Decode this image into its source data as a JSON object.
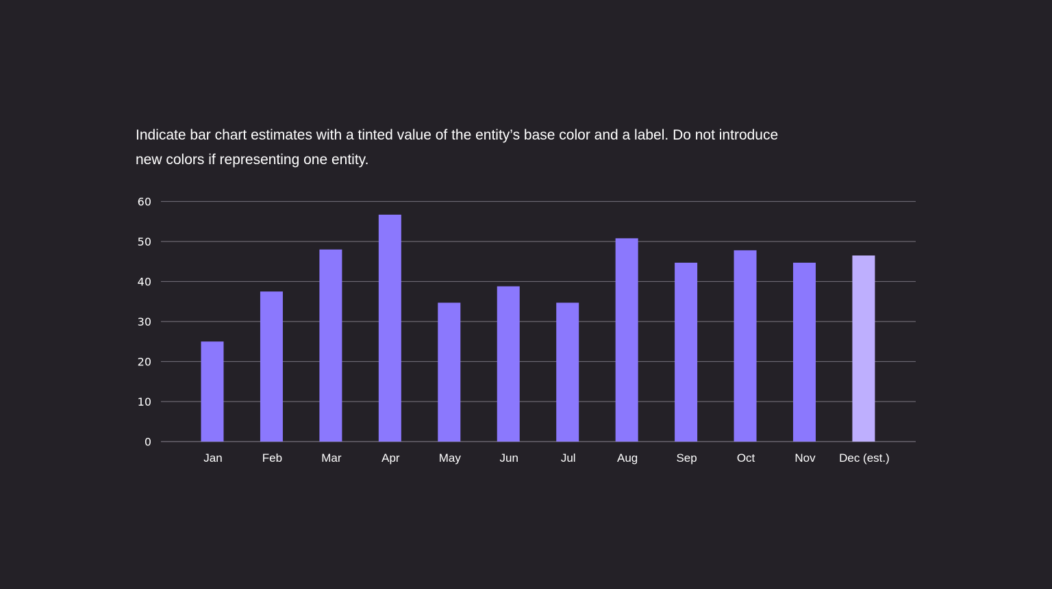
{
  "description": "Indicate bar chart estimates with a tinted value of the entity’s base color and a label. Do not introduce new colors if representing one entity.",
  "colors": {
    "background": "#242127",
    "bar": "#8b78fd",
    "bar_estimate": "#beaffe",
    "gridline": "#6a6670",
    "text": "#ffffff"
  },
  "chart_data": {
    "type": "bar",
    "title": "",
    "xlabel": "",
    "ylabel": "",
    "ylim": [
      0,
      60
    ],
    "yticks": [
      0,
      10,
      20,
      30,
      40,
      50,
      60
    ],
    "grid": true,
    "categories": [
      "Jan",
      "Feb",
      "Mar",
      "Apr",
      "May",
      "Jun",
      "Jul",
      "Aug",
      "Sep",
      "Oct",
      "Nov",
      "Dec (est.)"
    ],
    "values": [
      25,
      37.5,
      48,
      56.7,
      34.7,
      38.8,
      34.7,
      50.8,
      44.7,
      47.8,
      44.7,
      46.5
    ],
    "estimated": [
      false,
      false,
      false,
      false,
      false,
      false,
      false,
      false,
      false,
      false,
      false,
      true
    ]
  }
}
